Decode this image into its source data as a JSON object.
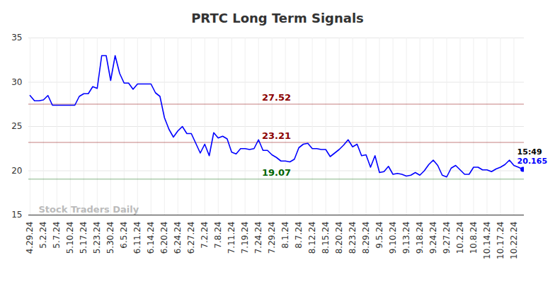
{
  "chart_data": {
    "type": "line",
    "title": "PRTC Long Term Signals",
    "categories": [
      "4.29.24",
      null,
      null,
      "5.2.24",
      null,
      null,
      "5.7.24",
      null,
      null,
      "5.10.24",
      null,
      null,
      "5.17.24",
      null,
      null,
      "5.23.24",
      null,
      null,
      "5.30.24",
      null,
      null,
      "6.5.24",
      null,
      null,
      "6.11.24",
      null,
      null,
      "6.14.24",
      null,
      null,
      "6.20.24",
      null,
      null,
      "6.24.24",
      null,
      null,
      "6.27.24",
      null,
      null,
      "7.2.24",
      null,
      null,
      "7.8.24",
      null,
      null,
      "7.11.24",
      null,
      null,
      "7.19.24",
      null,
      null,
      "7.24.24",
      null,
      null,
      "7.29.24",
      null,
      null,
      "8.1.24",
      null,
      null,
      "8.7.24",
      null,
      null,
      "8.12.24",
      null,
      null,
      "8.15.24",
      null,
      null,
      "8.20.24",
      null,
      null,
      "8.23.24",
      null,
      null,
      "8.29.24",
      null,
      null,
      "9.5.24",
      null,
      null,
      "9.10.24",
      null,
      null,
      "9.13.24",
      null,
      null,
      "9.18.24",
      null,
      null,
      "9.24.24",
      null,
      null,
      "9.27.24",
      null,
      null,
      "10.2.24",
      null,
      null,
      "10.8.24",
      null,
      null,
      "10.14.24",
      null,
      null,
      "10.17.24",
      null,
      null,
      "10.22.24",
      null,
      null
    ],
    "values": [
      28.5,
      27.9,
      27.9,
      28.0,
      28.5,
      27.4,
      27.4,
      27.4,
      27.4,
      27.4,
      27.4,
      28.4,
      28.7,
      28.7,
      29.5,
      29.3,
      33.0,
      33.0,
      30.2,
      33.0,
      31.0,
      29.9,
      29.9,
      29.2,
      29.8,
      29.8,
      29.8,
      29.8,
      28.8,
      28.4,
      26.0,
      24.7,
      23.8,
      24.5,
      25.0,
      24.2,
      24.2,
      23.1,
      22.0,
      23.0,
      21.7,
      24.3,
      23.7,
      23.9,
      23.6,
      22.1,
      21.9,
      22.5,
      22.5,
      22.4,
      22.5,
      23.5,
      22.3,
      22.3,
      21.8,
      21.5,
      21.1,
      21.1,
      21.0,
      21.3,
      22.6,
      23.0,
      23.1,
      22.5,
      22.5,
      22.4,
      22.4,
      21.6,
      22.0,
      22.4,
      22.9,
      23.5,
      22.7,
      23.0,
      21.7,
      21.8,
      20.4,
      21.7,
      19.8,
      19.9,
      20.5,
      19.6,
      19.7,
      19.6,
      19.4,
      19.5,
      19.8,
      19.5,
      20.0,
      20.7,
      21.2,
      20.6,
      19.5,
      19.3,
      20.3,
      20.6,
      20.1,
      19.6,
      19.6,
      20.4,
      20.4,
      20.1,
      20.1,
      19.9,
      20.2,
      20.4,
      20.7,
      21.2,
      20.6,
      20.4,
      20.165
    ],
    "color": "#0000ff",
    "ylim": [
      15,
      35
    ],
    "yticks": [
      15,
      20,
      25,
      30,
      35
    ],
    "grid": true,
    "reference_lines": [
      {
        "value": 27.52,
        "color": "#8b0000"
      },
      {
        "value": 23.21,
        "color": "#8b0000"
      },
      {
        "value": 19.07,
        "color": "#006400"
      }
    ],
    "last_point": {
      "time": "15:49",
      "value": 20.165
    },
    "watermark": "Stock Traders Daily"
  }
}
